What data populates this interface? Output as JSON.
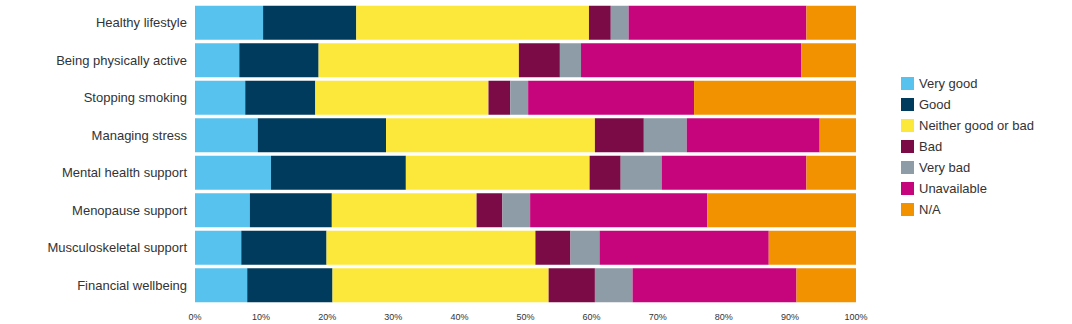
{
  "chart_data": {
    "type": "bar",
    "orientation": "horizontal",
    "stacked": true,
    "grid": false,
    "legend": "right",
    "categories": [
      "Healthy lifestyle",
      "Being physically active",
      "Stopping smoking",
      "Managing stress",
      "Mental health support",
      "Menopause support",
      "Musculoskeletal support",
      "Financial wellbeing"
    ],
    "xlim": [
      0,
      100
    ],
    "xticks": [
      {
        "value": 0,
        "label": "0%"
      },
      {
        "value": 10,
        "label": "10%"
      },
      {
        "value": 20,
        "label": "20%"
      },
      {
        "value": 30,
        "label": "30%"
      },
      {
        "value": 40,
        "label": "40%"
      },
      {
        "value": 50,
        "label": "50%"
      },
      {
        "value": 60,
        "label": "60%"
      },
      {
        "value": 70,
        "label": "70%"
      },
      {
        "value": 80,
        "label": "80%"
      },
      {
        "value": 90,
        "label": "90%"
      },
      {
        "value": 100,
        "label": "100%"
      }
    ],
    "series": [
      {
        "name": "Very good",
        "color": "#57c2ee",
        "values": [
          10.3,
          6.7,
          7.6,
          9.5,
          11.5,
          8.3,
          7.0,
          7.9
        ]
      },
      {
        "name": "Good",
        "color": "#003a5d",
        "values": [
          14.1,
          12.0,
          10.6,
          19.4,
          20.4,
          12.4,
          12.9,
          12.9
        ]
      },
      {
        "name": "Neither good or bad",
        "color": "#fce83a",
        "values": [
          35.2,
          30.3,
          26.2,
          31.6,
          27.8,
          21.9,
          31.6,
          32.7
        ]
      },
      {
        "name": "Bad",
        "color": "#7a0b47",
        "values": [
          3.3,
          6.2,
          3.3,
          7.4,
          4.7,
          3.9,
          5.3,
          7.0
        ]
      },
      {
        "name": "Very bad",
        "color": "#8d9ca7",
        "values": [
          2.7,
          3.2,
          2.7,
          6.5,
          6.2,
          4.2,
          4.4,
          5.7
        ]
      },
      {
        "name": "Unavailable",
        "color": "#c6047c",
        "values": [
          26.9,
          33.3,
          25.1,
          20.1,
          21.9,
          26.8,
          25.6,
          24.8
        ]
      },
      {
        "name": "N/A",
        "color": "#f39200",
        "values": [
          7.5,
          8.3,
          24.5,
          5.5,
          7.5,
          22.5,
          13.2,
          9.0
        ]
      }
    ]
  }
}
